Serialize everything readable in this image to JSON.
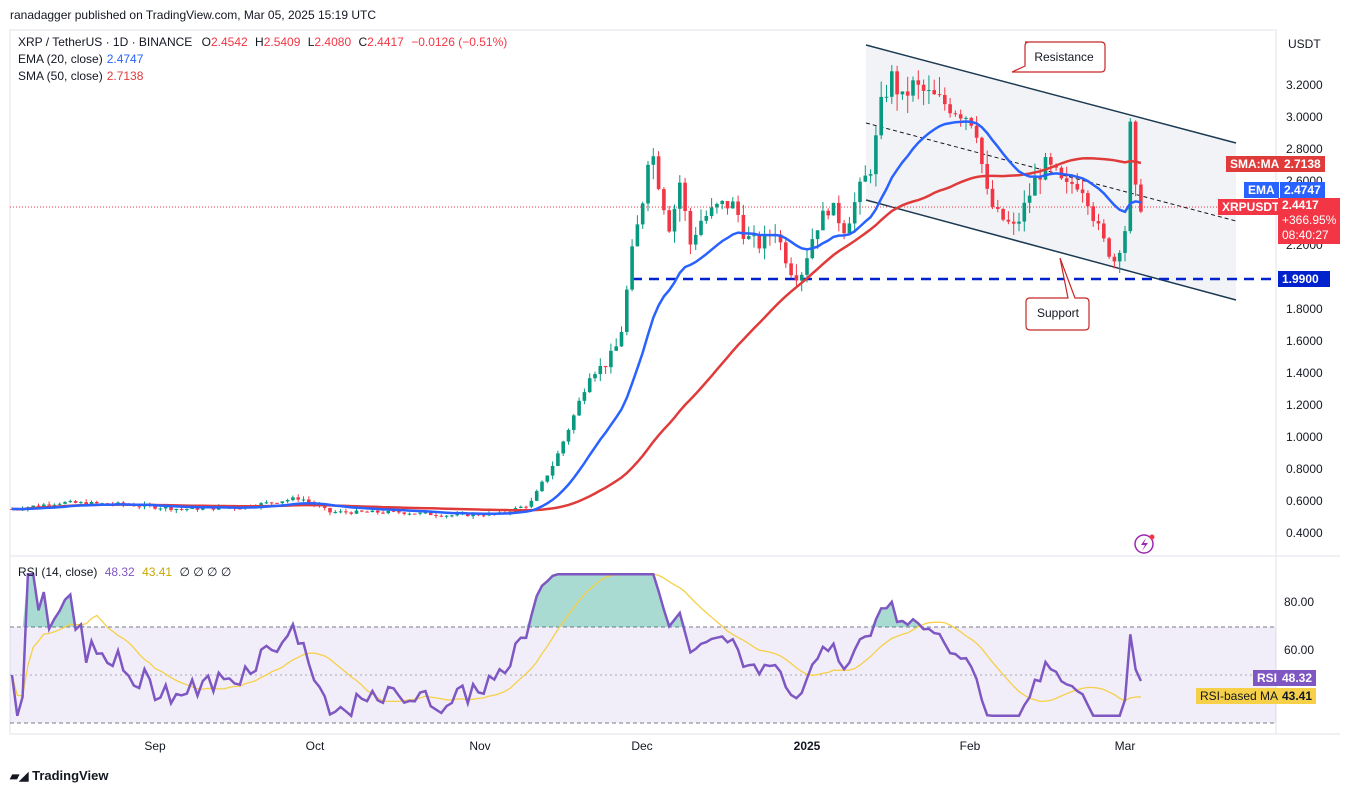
{
  "header": {
    "published": "ranadagger published on TradingView.com, Mar 05, 2025 15:19 UTC",
    "symbol": "XRP / TetherUS · 1D · BINANCE",
    "o_label": "O",
    "o_value": "2.4542",
    "h_label": "H",
    "h_value": "2.5409",
    "l_label": "L",
    "l_value": "2.4080",
    "c_label": "C",
    "c_value": "2.4417",
    "change": "−0.0126 (−0.51%)",
    "ema_label": "EMA (20, close)",
    "ema_value": "2.4747",
    "sma_label": "SMA (50, close)",
    "sma_value": "2.7138"
  },
  "price_axis": {
    "currency": "USDT",
    "ticks": [
      "3.2000",
      "3.0000",
      "2.8000",
      "2.6000",
      "2.2000",
      "1.8000",
      "1.6000",
      "1.4000",
      "1.2000",
      "1.0000",
      "0.8000",
      "0.6000",
      "0.4000"
    ]
  },
  "time_axis": {
    "ticks": [
      "Sep",
      "Oct",
      "Nov",
      "Dec",
      "2025",
      "Feb",
      "Mar"
    ]
  },
  "tags": {
    "sma": {
      "label": "SMA:MA",
      "value": "2.7138"
    },
    "ema": {
      "label": "EMA",
      "value": "2.4747"
    },
    "price": {
      "label": "XRPUSDT",
      "value": "2.4417",
      "change": "+366.95%",
      "timer": "08:40:27"
    },
    "support_level": "1.9900"
  },
  "annotations": {
    "resistance": "Resistance",
    "support": "Support"
  },
  "rsi": {
    "label": "RSI (14, close)",
    "value": "48.32",
    "ma_value": "43.41",
    "extras": "∅ ∅ ∅ ∅",
    "ticks": [
      "80.00",
      "60.00"
    ],
    "tag_rsi": "RSI",
    "tag_ma": "RSI-based MA"
  },
  "footer": {
    "brand": "TradingView"
  },
  "colors": {
    "up": "#089981",
    "down": "#f23645",
    "ema": "#2962ff",
    "sma": "#e03b3b",
    "rsi": "#7e57c2",
    "rsi_ma": "#f5d048",
    "support": "#0022cc"
  },
  "chart_data": {
    "type": "line",
    "title": "XRP / TetherUS · 1D · BINANCE",
    "x": [
      "Sep",
      "Oct",
      "Nov",
      "Dec",
      "2025",
      "Feb",
      "Mar"
    ],
    "ylim": [
      0.3,
      3.45
    ],
    "series": [
      {
        "name": "EMA (20, close)",
        "x": [
          "Sep",
          "Oct",
          "Nov",
          "Dec",
          "2025",
          "Feb",
          "Mar"
        ],
        "values": [
          0.58,
          0.58,
          0.53,
          1.5,
          2.15,
          2.75,
          2.47
        ]
      },
      {
        "name": "SMA (50, close)",
        "x": [
          "Sep",
          "Oct",
          "Nov",
          "Dec",
          "2025",
          "Feb",
          "Mar"
        ],
        "values": [
          0.56,
          0.58,
          0.54,
          0.72,
          1.95,
          2.55,
          2.71
        ]
      }
    ],
    "levels": [
      {
        "name": "1.9900",
        "y": 1.99
      }
    ],
    "rsi": {
      "ticks": [
        80,
        60
      ],
      "value": 48.32,
      "ma": 43.41
    }
  }
}
